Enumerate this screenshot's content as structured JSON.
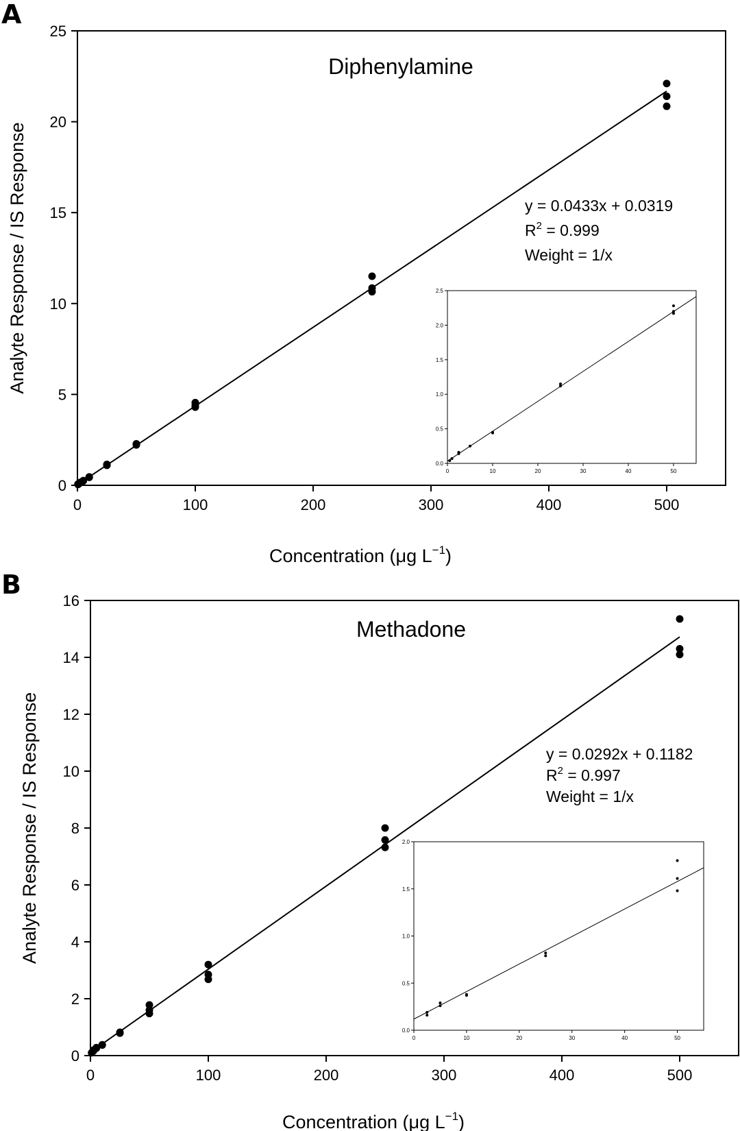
{
  "figure": {
    "panels": [
      {
        "letter": "A"
      },
      {
        "letter": "B"
      }
    ]
  },
  "chart_data": [
    {
      "type": "scatter",
      "panel": "A",
      "title": "Diphenylamine",
      "xlabel": "Concentration (μg L",
      "xlabel_sup": "−1",
      "xlabel_end": ")",
      "ylabel": "Analyte Response / IS Response",
      "xlim": [
        0,
        550
      ],
      "ylim": [
        0,
        25
      ],
      "xticks": [
        0,
        100,
        200,
        300,
        400,
        500
      ],
      "yticks": [
        0,
        5,
        10,
        15,
        20,
        25
      ],
      "grid": false,
      "points": [
        [
          0.5,
          0.05
        ],
        [
          0.5,
          0.07
        ],
        [
          1,
          0.07
        ],
        [
          2.5,
          0.14
        ],
        [
          2.5,
          0.16
        ],
        [
          5,
          0.26
        ],
        [
          5,
          0.24
        ],
        [
          10,
          0.46
        ],
        [
          10,
          0.44
        ],
        [
          25,
          1.15
        ],
        [
          25,
          1.1
        ],
        [
          50,
          2.28
        ],
        [
          50,
          2.22
        ],
        [
          100,
          4.55
        ],
        [
          100,
          4.4
        ],
        [
          100,
          4.3
        ],
        [
          250,
          11.5
        ],
        [
          250,
          10.85
        ],
        [
          250,
          10.65
        ],
        [
          500,
          22.1
        ],
        [
          500,
          21.4
        ],
        [
          500,
          20.85
        ]
      ],
      "fit": {
        "slope": 0.0433,
        "intercept": 0.0319,
        "x_range": [
          0,
          500
        ]
      },
      "annotation": {
        "line1": "y = 0.0433x + 0.0319",
        "line2_prefix": "R",
        "line2_sup": "2",
        "line2_suffix": " = 0.999",
        "line3": "Weight = 1/x"
      },
      "inset": {
        "xlim": [
          0,
          55
        ],
        "ylim": [
          0,
          2.5
        ],
        "xticks": [
          0,
          10,
          20,
          30,
          40,
          50
        ],
        "yticks": [
          "0.0",
          "0.5",
          "1.0",
          "1.5",
          "2.0",
          "2.5"
        ],
        "points": [
          [
            0.5,
            0.04
          ],
          [
            1,
            0.07
          ],
          [
            2.5,
            0.14
          ],
          [
            2.5,
            0.16
          ],
          [
            5,
            0.25
          ],
          [
            10,
            0.45
          ],
          [
            10,
            0.44
          ],
          [
            25,
            1.15
          ],
          [
            25,
            1.12
          ],
          [
            50,
            2.28
          ],
          [
            50,
            2.2
          ],
          [
            50,
            2.17
          ]
        ],
        "fit": {
          "slope": 0.0433,
          "intercept": 0.0319,
          "x_range": [
            0,
            55
          ]
        }
      }
    },
    {
      "type": "scatter",
      "panel": "B",
      "title": "Methadone",
      "xlabel": "Concentration (μg L",
      "xlabel_sup": "−1",
      "xlabel_end": ")",
      "ylabel": "Analyte Response / IS Response",
      "xlim": [
        0,
        550
      ],
      "ylim": [
        0,
        16
      ],
      "xticks": [
        0,
        100,
        200,
        300,
        400,
        500
      ],
      "yticks": [
        0,
        2,
        4,
        6,
        8,
        10,
        12,
        14,
        16
      ],
      "grid": false,
      "points": [
        [
          1,
          0.1
        ],
        [
          2.5,
          0.16
        ],
        [
          2.5,
          0.19
        ],
        [
          5,
          0.28
        ],
        [
          5,
          0.26
        ],
        [
          10,
          0.38
        ],
        [
          10,
          0.37
        ],
        [
          25,
          0.82
        ],
        [
          25,
          0.79
        ],
        [
          50,
          1.78
        ],
        [
          50,
          1.6
        ],
        [
          50,
          1.48
        ],
        [
          100,
          3.2
        ],
        [
          100,
          2.85
        ],
        [
          100,
          2.68
        ],
        [
          250,
          8.0
        ],
        [
          250,
          7.58
        ],
        [
          250,
          7.32
        ],
        [
          500,
          15.35
        ],
        [
          500,
          14.3
        ],
        [
          500,
          14.1
        ]
      ],
      "fit": {
        "slope": 0.0292,
        "intercept": 0.1182,
        "x_range": [
          0,
          500
        ]
      },
      "annotation": {
        "line1": "y = 0.0292x + 0.1182",
        "line2_prefix": "R",
        "line2_sup": "2",
        "line2_suffix": " = 0.997",
        "line3": "Weight = 1/x"
      },
      "inset": {
        "xlim": [
          0,
          55
        ],
        "ylim": [
          0,
          2.0
        ],
        "xticks": [
          0,
          10,
          20,
          30,
          40,
          50
        ],
        "yticks": [
          "0.0",
          "0.5",
          "1.0",
          "1.5",
          "2.0"
        ],
        "points": [
          [
            2.5,
            0.19
          ],
          [
            2.5,
            0.16
          ],
          [
            5,
            0.29
          ],
          [
            5,
            0.26
          ],
          [
            10,
            0.38
          ],
          [
            10,
            0.37
          ],
          [
            25,
            0.82
          ],
          [
            25,
            0.79
          ],
          [
            50,
            1.8
          ],
          [
            50,
            1.61
          ],
          [
            50,
            1.48
          ]
        ],
        "fit": {
          "slope": 0.0292,
          "intercept": 0.1182,
          "x_range": [
            0,
            55
          ]
        }
      }
    }
  ]
}
